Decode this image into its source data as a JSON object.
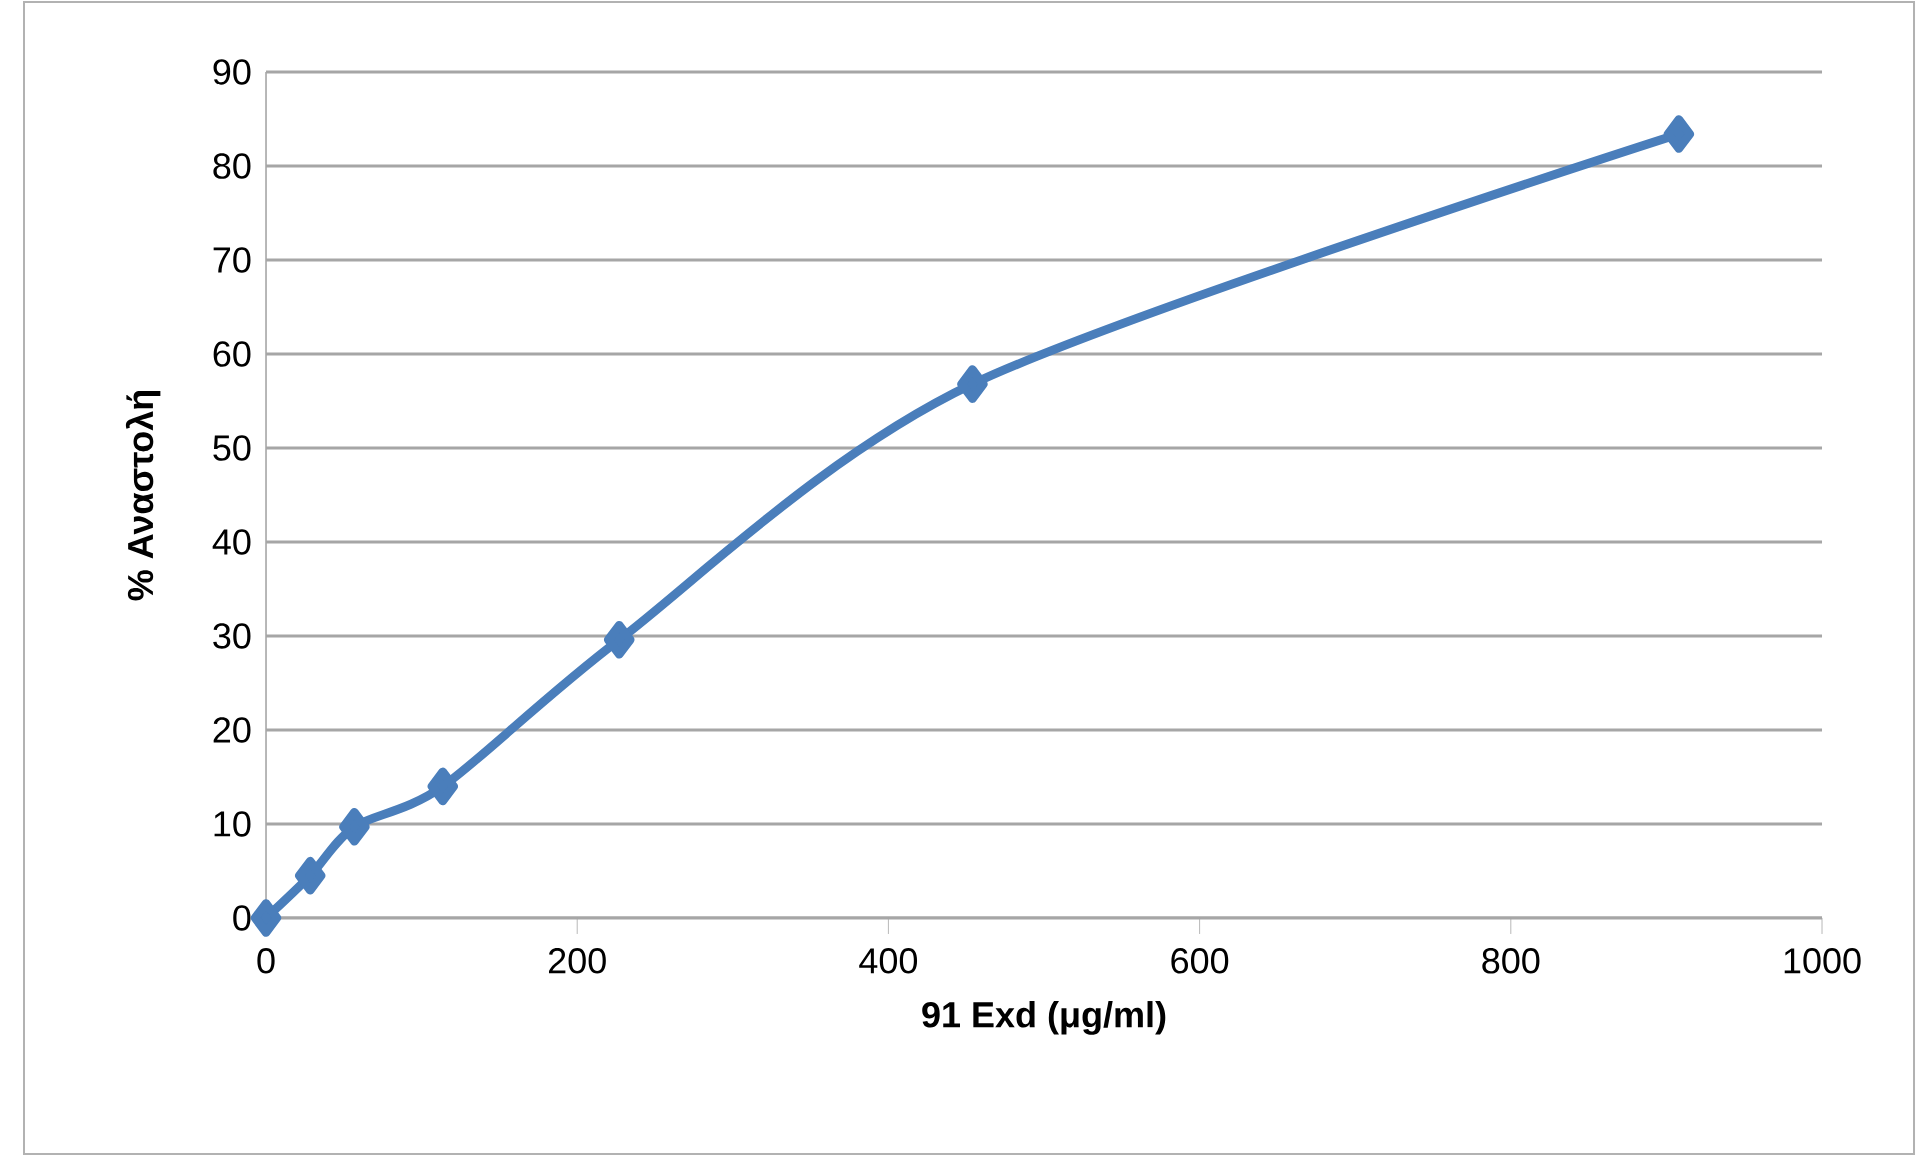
{
  "chart_data": {
    "type": "line",
    "xlabel": "91 Exd (μg/ml)",
    "ylabel": "% Αναστολή",
    "x": [
      0,
      28.4,
      56.8,
      113.6,
      227,
      454,
      908
    ],
    "series": [
      {
        "color": "#4a7ebb",
        "values": [
          0,
          4.5,
          9.7,
          14,
          29.6,
          56.8,
          83.4
        ]
      }
    ],
    "xlim": [
      0,
      1000
    ],
    "xticks": [
      0,
      200,
      400,
      600,
      800,
      1000
    ],
    "ylim": [
      0,
      90
    ],
    "yticks": [
      0,
      10,
      20,
      30,
      40,
      50,
      60,
      70,
      80,
      90
    ],
    "grid": "y",
    "marker": "diamond",
    "line_style": "solid"
  }
}
